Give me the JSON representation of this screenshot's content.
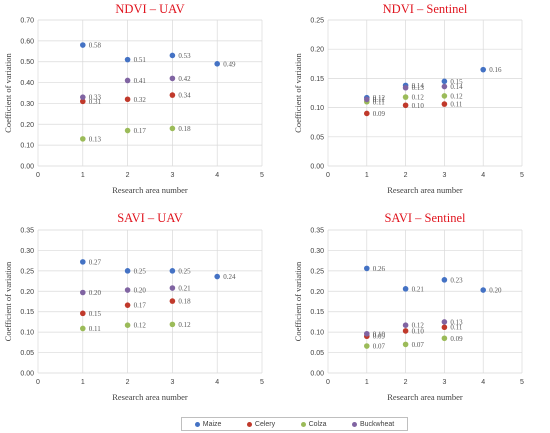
{
  "series_meta": [
    {
      "name": "Maize",
      "color": "#4472C4"
    },
    {
      "name": "Celery",
      "color": "#C0392B"
    },
    {
      "name": "Colza",
      "color": "#9BBB59"
    },
    {
      "name": "Buckwheat",
      "color": "#8064A2"
    }
  ],
  "chart_data": [
    {
      "type": "scatter",
      "title": "NDVI – UAV",
      "xlabel": "Research area number",
      "ylabel": "Coefficient of variation",
      "xlim": [
        0,
        5
      ],
      "ylim": [
        0,
        0.7
      ],
      "xticks": [
        "0",
        "1",
        "2",
        "3",
        "4",
        "5"
      ],
      "yticks": [
        "0.00",
        "0.10",
        "0.20",
        "0.30",
        "0.40",
        "0.50",
        "0.60",
        "0.70"
      ],
      "grid": true,
      "legend": "bottom",
      "series": [
        {
          "name": "Maize",
          "x": [
            1,
            2,
            3,
            4
          ],
          "y": [
            0.58,
            0.51,
            0.53,
            0.49
          ],
          "labels": [
            "0.58",
            "0.51",
            "0.53",
            "0.49"
          ]
        },
        {
          "name": "Celery",
          "x": [
            1,
            2,
            3
          ],
          "y": [
            0.31,
            0.32,
            0.34
          ],
          "labels": [
            "0.31",
            "0.32",
            "0.34"
          ]
        },
        {
          "name": "Colza",
          "x": [
            1,
            2,
            3
          ],
          "y": [
            0.13,
            0.17,
            0.18
          ],
          "labels": [
            "0.13",
            "0.17",
            "0.18"
          ]
        },
        {
          "name": "Buckwheat",
          "x": [
            1,
            2,
            3
          ],
          "y": [
            0.33,
            0.41,
            0.42
          ],
          "labels": [
            "0.33",
            "0.41",
            "0.42"
          ]
        }
      ]
    },
    {
      "type": "scatter",
      "title": "NDVI – Sentinel",
      "xlabel": "Research area number",
      "ylabel": "Coefficient of variation",
      "xlim": [
        0,
        5
      ],
      "ylim": [
        0,
        0.25
      ],
      "xticks": [
        "0",
        "1",
        "2",
        "3",
        "4",
        "5"
      ],
      "yticks": [
        "0.00",
        "0.05",
        "0.10",
        "0.15",
        "0.20",
        "0.25"
      ],
      "grid": true,
      "legend": "bottom",
      "series": [
        {
          "name": "Maize",
          "x": [
            1,
            2,
            3,
            4
          ],
          "y": [
            0.117,
            0.138,
            0.145,
            0.165
          ],
          "labels": [
            "0.12",
            "0.14",
            "0.15",
            "0.16"
          ]
        },
        {
          "name": "Celery",
          "x": [
            1,
            2,
            3
          ],
          "y": [
            0.09,
            0.104,
            0.106
          ],
          "labels": [
            "0.09",
            "0.10",
            "0.11"
          ]
        },
        {
          "name": "Colza",
          "x": [
            1,
            2,
            3
          ],
          "y": [
            0.11,
            0.118,
            0.12
          ],
          "labels": [
            "0.11",
            "0.12",
            "0.12"
          ]
        },
        {
          "name": "Buckwheat",
          "x": [
            1,
            2,
            3
          ],
          "y": [
            0.114,
            0.134,
            0.136
          ],
          "labels": [
            "0.11",
            "0.13",
            "0.14"
          ]
        }
      ]
    },
    {
      "type": "scatter",
      "title": "SAVI – UAV",
      "xlabel": "Research area number",
      "ylabel": "Coefficient of variation",
      "xlim": [
        0,
        5
      ],
      "ylim": [
        0,
        0.35
      ],
      "xticks": [
        "0",
        "1",
        "2",
        "3",
        "4",
        "5"
      ],
      "yticks": [
        "0.00",
        "0.05",
        "0.10",
        "0.15",
        "0.20",
        "0.25",
        "0.30",
        "0.35"
      ],
      "grid": true,
      "legend": "bottom",
      "series": [
        {
          "name": "Maize",
          "x": [
            1,
            2,
            3,
            4
          ],
          "y": [
            0.272,
            0.25,
            0.25,
            0.236
          ],
          "labels": [
            "0.27",
            "0.25",
            "0.25",
            "0.24"
          ]
        },
        {
          "name": "Celery",
          "x": [
            1,
            2,
            3
          ],
          "y": [
            0.146,
            0.166,
            0.176
          ],
          "labels": [
            "0.15",
            "0.17",
            "0.18"
          ]
        },
        {
          "name": "Colza",
          "x": [
            1,
            2,
            3
          ],
          "y": [
            0.109,
            0.117,
            0.119
          ],
          "labels": [
            "0.11",
            "0.12",
            "0.12"
          ]
        },
        {
          "name": "Buckwheat",
          "x": [
            1,
            2,
            3
          ],
          "y": [
            0.197,
            0.203,
            0.208
          ],
          "labels": [
            "0.20",
            "0.20",
            "0.21"
          ]
        }
      ]
    },
    {
      "type": "scatter",
      "title": "SAVI – Sentinel",
      "xlabel": "Research area number",
      "ylabel": "Coefficient of variation",
      "xlim": [
        0,
        5
      ],
      "ylim": [
        0,
        0.35
      ],
      "xticks": [
        "0",
        "1",
        "2",
        "3",
        "4",
        "5"
      ],
      "yticks": [
        "0.00",
        "0.05",
        "0.10",
        "0.15",
        "0.20",
        "0.25",
        "0.30",
        "0.35"
      ],
      "grid": true,
      "legend": "bottom",
      "series": [
        {
          "name": "Maize",
          "x": [
            1,
            2,
            3,
            4
          ],
          "y": [
            0.256,
            0.206,
            0.228,
            0.203
          ],
          "labels": [
            "0.26",
            "0.21",
            "0.23",
            "0.20"
          ]
        },
        {
          "name": "Celery",
          "x": [
            1,
            2,
            3
          ],
          "y": [
            0.09,
            0.103,
            0.112
          ],
          "labels": [
            "0.09",
            "0.10",
            "0.11"
          ]
        },
        {
          "name": "Colza",
          "x": [
            1,
            2,
            3
          ],
          "y": [
            0.066,
            0.07,
            0.085
          ],
          "labels": [
            "0.07",
            "0.07",
            "0.09"
          ]
        },
        {
          "name": "Buckwheat",
          "x": [
            1,
            2,
            3
          ],
          "y": [
            0.096,
            0.117,
            0.125
          ],
          "labels": [
            "0.10",
            "0.12",
            "0.13"
          ]
        }
      ]
    }
  ]
}
